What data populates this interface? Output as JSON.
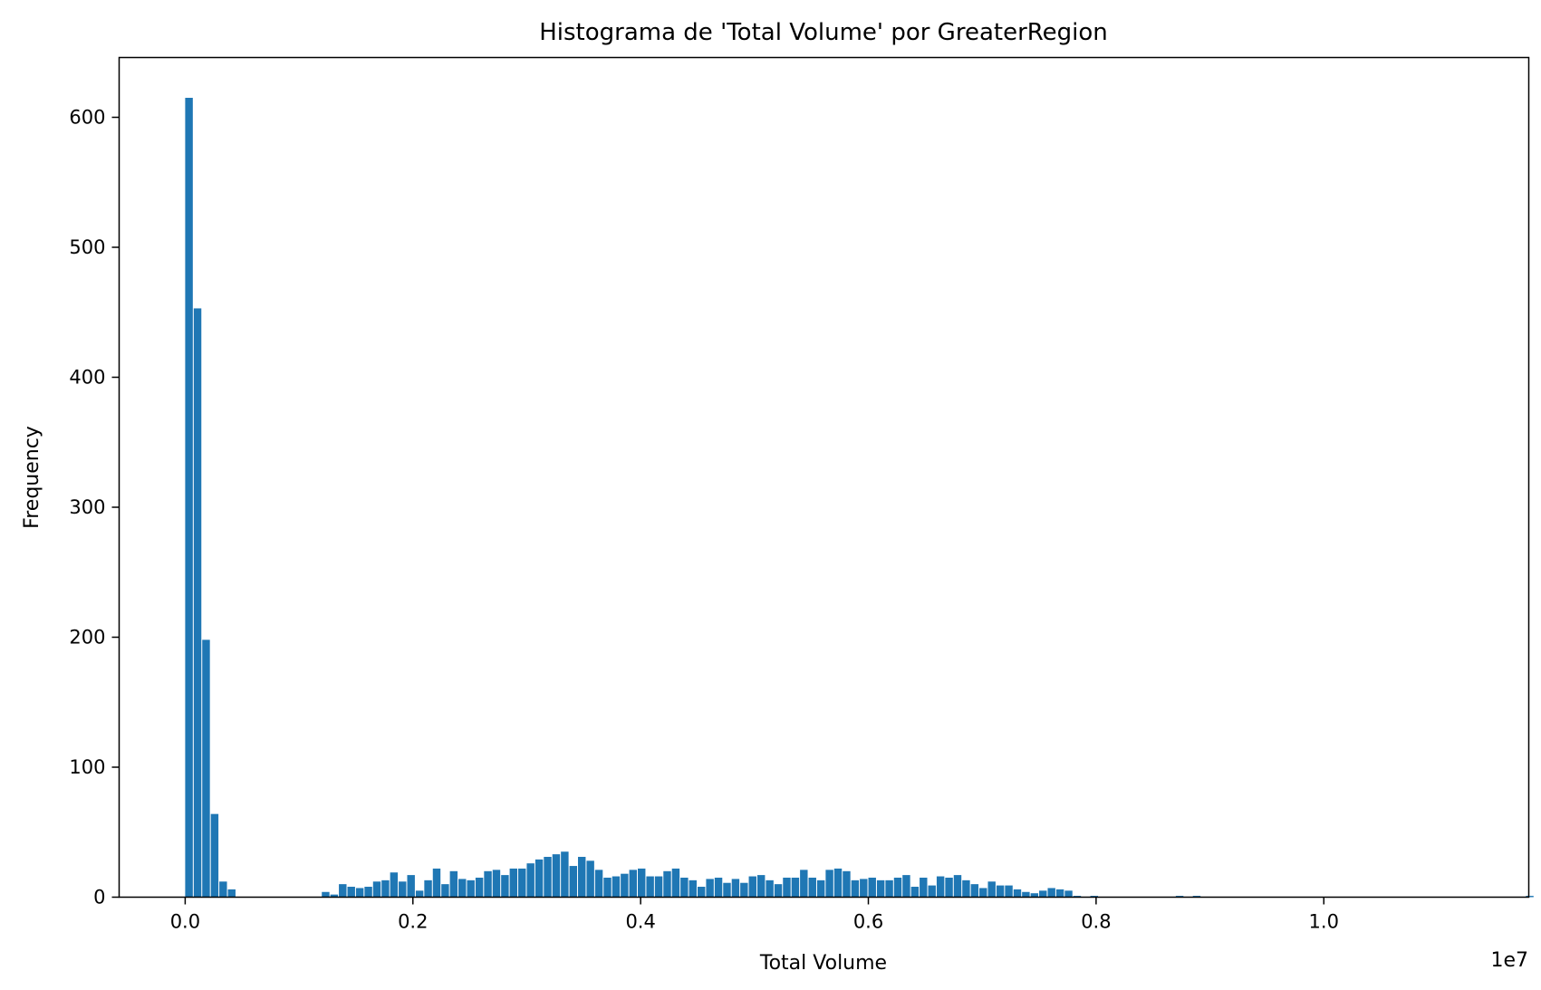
{
  "chart_data": {
    "type": "bar",
    "title": "Histograma de 'Total Volume' por GreaterRegion",
    "xlabel": "Total Volume",
    "ylabel": "Frequency",
    "x_offset_label": "1e7",
    "xlim": [
      -0.058,
      1.18
    ],
    "ylim": [
      0,
      646
    ],
    "x_ticks": [
      0.0,
      0.2,
      0.4,
      0.6,
      0.8,
      1.0
    ],
    "x_tick_labels": [
      "0.0",
      "0.2",
      "0.4",
      "0.6",
      "0.8",
      "1.0"
    ],
    "y_ticks": [
      0,
      100,
      200,
      300,
      400,
      500,
      600
    ],
    "y_tick_labels": [
      "0",
      "100",
      "200",
      "300",
      "400",
      "500",
      "600"
    ],
    "grid": false,
    "bar_color": "#1f77b4",
    "bin_start": 0.0,
    "bin_width": 0.0075,
    "values": [
      615,
      453,
      198,
      64,
      12,
      6,
      0,
      0,
      0,
      0,
      0,
      0,
      0,
      0,
      0,
      0,
      4,
      2,
      10,
      8,
      7,
      8,
      12,
      13,
      19,
      12,
      17,
      5,
      13,
      22,
      10,
      20,
      14,
      13,
      15,
      20,
      21,
      17,
      22,
      22,
      26,
      29,
      31,
      33,
      35,
      24,
      31,
      28,
      21,
      15,
      16,
      18,
      21,
      22,
      16,
      16,
      20,
      22,
      15,
      13,
      8,
      14,
      15,
      11,
      14,
      11,
      16,
      17,
      13,
      10,
      15,
      15,
      21,
      15,
      13,
      21,
      22,
      20,
      13,
      14,
      15,
      13,
      13,
      15,
      17,
      8,
      15,
      9,
      16,
      15,
      17,
      13,
      10,
      7,
      12,
      9,
      9,
      6,
      4,
      3,
      5,
      7,
      6,
      5,
      1,
      0,
      1,
      0,
      0,
      0,
      0,
      0,
      0,
      0,
      0,
      0,
      1,
      0,
      1,
      0,
      0,
      0,
      0,
      0,
      0,
      0,
      0,
      0,
      0,
      0,
      0,
      0,
      0,
      0,
      0,
      0,
      0,
      0,
      0,
      0,
      0,
      0,
      0,
      0,
      0,
      0,
      0,
      0,
      0,
      0,
      0,
      0,
      0,
      0,
      0,
      0,
      0,
      1,
      0,
      0,
      0,
      0,
      0,
      0,
      0,
      0,
      0,
      0,
      0,
      0,
      0,
      0,
      0,
      1
    ]
  }
}
